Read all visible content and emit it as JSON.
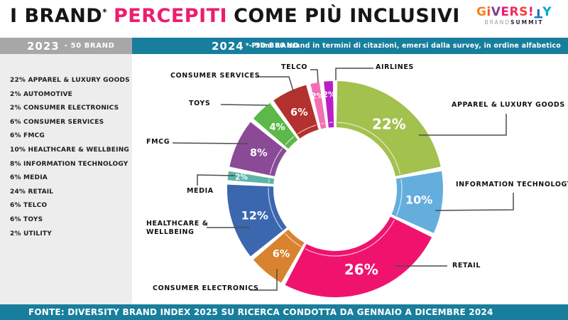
{
  "header": {
    "title_black1": "I BRAND",
    "title_asterisk": "*",
    "title_pink": "PERCEPITI",
    "title_black2": "COME PIÙ INCLUSIVI",
    "accent_color": "#ec1d70",
    "logo": {
      "letters": [
        {
          "ch": "G",
          "color": "#f5821f",
          "flip": false
        },
        {
          "ch": "i",
          "color": "#f0592b",
          "flip": false
        },
        {
          "ch": "V",
          "color": "#7f3f97",
          "flip": false
        },
        {
          "ch": "E",
          "color": "#ed1a75",
          "flip": false
        },
        {
          "ch": "R",
          "color": "#ee2d5f",
          "flip": false
        },
        {
          "ch": "S",
          "color": "#ef4136",
          "flip": false
        },
        {
          "ch": "!",
          "color": "#ed1a75",
          "flip": false
        },
        {
          "ch": "T",
          "color": "#1b75bc",
          "flip": true
        },
        {
          "ch": "Y",
          "color": "#00a7ce",
          "flip": false
        }
      ],
      "subtitle_left": "BRAND",
      "subtitle_right": "SUMMIT"
    }
  },
  "tabs": {
    "tab_2023": {
      "year": "2023",
      "suffix": "- 50 BRAND",
      "color": "#a7a7a7"
    },
    "tab_2024": {
      "year": "2024",
      "suffix": "- 50 BRAND",
      "color": "#187e9d"
    },
    "note": "* Primi 50 brand in termini di citazioni, emersi dalla survey, in ordine alfabetico"
  },
  "sidebar_2023": {
    "items": [
      "22% APPAREL & LUXURY GOODS",
      "2% AUTOMOTIVE",
      "2% CONSUMER ELECTRONICS",
      "6% CONSUMER SERVICES",
      "6% FMCG",
      "10% HEALTHCARE & WELLBEING",
      "8% INFORMATION TECHNOLOGY",
      "6% MEDIA",
      "24% RETAIL",
      "6% TELCO",
      "6% TOYS",
      "2% UTILITY"
    ]
  },
  "chart_data": {
    "type": "pie",
    "donut": true,
    "title": "2024 - 50 BRAND",
    "unit": "%",
    "start_angle": "12 o'clock, clockwise",
    "segments": [
      {
        "label": "APPAREL & LUXURY GOODS",
        "value": 22,
        "pct_label": "22%",
        "color": "#a3c14d"
      },
      {
        "label": "INFORMATION TECHNOLOGY",
        "value": 10,
        "pct_label": "10%",
        "color": "#64aede"
      },
      {
        "label": "RETAIL",
        "value": 26,
        "pct_label": "26%",
        "color": "#f0136e"
      },
      {
        "label": "CONSUMER ELECTRONICS",
        "value": 6,
        "pct_label": "6%",
        "color": "#d9822f"
      },
      {
        "label": "HEALTHCARE & WELLBEING",
        "value": 12,
        "pct_label": "12%",
        "color": "#3a67ae"
      },
      {
        "label": "MEDIA",
        "value": 2,
        "pct_label": "2%",
        "color": "#5fb3a9"
      },
      {
        "label": "FMCG",
        "value": 8,
        "pct_label": "8%",
        "color": "#8a4a96"
      },
      {
        "label": "TOYS",
        "value": 4,
        "pct_label": "4%",
        "color": "#5cb848"
      },
      {
        "label": "CONSUMER SERVICES",
        "value": 6,
        "pct_label": "6%",
        "color": "#b3312e"
      },
      {
        "label": "TELCO",
        "value": 2,
        "pct_label": "2%",
        "color": "#f56eb4"
      },
      {
        "label": "AIRLINES",
        "value": 2,
        "pct_label": "2%",
        "color": "#bb1fc4"
      }
    ]
  },
  "footer": {
    "text": "FONTE: DIVERSITY BRAND INDEX 2025 SU RICERCA CONDOTTA DA GENNAIO A DICEMBRE 2024"
  }
}
